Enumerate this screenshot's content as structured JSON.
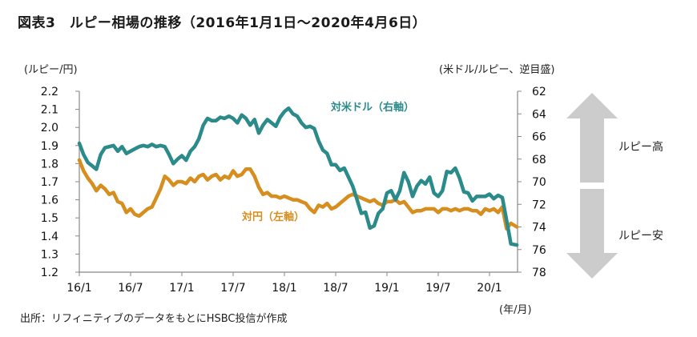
{
  "header": {
    "title": "図表3　ルピー相場の推移（2016年1月1日～2020年4月6日）"
  },
  "footer": {
    "source": "出所：リフィニティブのデータをもとにHSBC投信が作成"
  },
  "chart_data": {
    "type": "line",
    "title": "図表3　ルピー相場の推移（2016年1月1日～2020年4月6日）",
    "xlabel": "(年/月)",
    "ylabel_left": "(ルピー/円)",
    "ylabel_right": "(米ドル/ルピー、逆目盛)",
    "x_ticks": [
      "16/1",
      "16/7",
      "17/1",
      "17/7",
      "18/1",
      "18/7",
      "19/1",
      "19/7",
      "20/1"
    ],
    "x_range_months": [
      0,
      51.2
    ],
    "y_left": {
      "ticks": [
        "2.2",
        "2.1",
        "2.0",
        "1.9",
        "1.8",
        "1.7",
        "1.6",
        "1.5",
        "1.4",
        "1.3",
        "1.2"
      ],
      "range": [
        1.2,
        2.2
      ]
    },
    "y_right": {
      "ticks": [
        "62",
        "64",
        "66",
        "68",
        "70",
        "72",
        "74",
        "76",
        "78"
      ],
      "range": [
        62,
        78
      ],
      "inverted": true
    },
    "grid": false,
    "series": [
      {
        "name": "対米ドル（右軸）",
        "axis": "right",
        "color": "#2b8a8a",
        "x": [
          0,
          0.5,
          1,
          1.5,
          2,
          2.5,
          3,
          3.5,
          4,
          4.5,
          5,
          5.5,
          6,
          6.5,
          7,
          7.5,
          8,
          8.5,
          9,
          9.5,
          10,
          10.5,
          11,
          11.5,
          12,
          12.5,
          13,
          13.5,
          14,
          14.5,
          15,
          15.5,
          16,
          16.5,
          17,
          17.5,
          18,
          18.5,
          19,
          19.5,
          20,
          20.5,
          21,
          21.5,
          22,
          22.5,
          23,
          23.5,
          24,
          24.5,
          25,
          25.5,
          26,
          26.5,
          27,
          27.5,
          28,
          28.5,
          29,
          29.5,
          30,
          30.5,
          31,
          31.5,
          32,
          32.5,
          33,
          33.5,
          34,
          34.5,
          35,
          35.5,
          36,
          36.5,
          37,
          37.5,
          38,
          38.5,
          39,
          39.5,
          40,
          40.5,
          41,
          41.5,
          42,
          42.5,
          43,
          43.5,
          44,
          44.5,
          45,
          45.5,
          46,
          46.5,
          47,
          47.5,
          48,
          48.5,
          49,
          49.5,
          50,
          50.5,
          51.2
        ],
        "values": [
          66.6,
          67.6,
          68.3,
          68.6,
          68.9,
          67.6,
          67.0,
          66.9,
          66.8,
          67.3,
          66.9,
          67.5,
          67.3,
          67.1,
          66.9,
          66.8,
          66.9,
          66.7,
          66.9,
          66.8,
          66.9,
          67.6,
          68.4,
          68.0,
          67.7,
          68.1,
          67.3,
          66.9,
          66.2,
          65.0,
          64.4,
          64.6,
          64.6,
          64.3,
          64.4,
          64.2,
          64.4,
          64.8,
          64.1,
          64.4,
          65.0,
          64.5,
          65.7,
          65.0,
          64.5,
          64.8,
          65.1,
          64.3,
          63.8,
          63.5,
          64.0,
          64.2,
          64.8,
          65.2,
          65.1,
          65.3,
          66.4,
          67.2,
          67.5,
          68.5,
          68.5,
          69.0,
          68.8,
          69.6,
          70.4,
          71.6,
          72.8,
          72.7,
          74.1,
          73.9,
          72.8,
          72.4,
          71.0,
          70.8,
          71.6,
          70.8,
          69.2,
          70.0,
          71.3,
          70.4,
          69.9,
          70.2,
          69.6,
          71.0,
          71.3,
          70.8,
          69.1,
          69.2,
          68.8,
          69.7,
          70.9,
          71.0,
          71.7,
          71.3,
          71.3,
          71.3,
          71.1,
          71.5,
          71.2,
          71.4,
          73.4,
          75.5,
          75.6
        ]
      },
      {
        "name": "対円（左軸）",
        "axis": "left",
        "color": "#d68e1e",
        "x": [
          0,
          0.5,
          1,
          1.5,
          2,
          2.5,
          3,
          3.5,
          4,
          4.5,
          5,
          5.5,
          6,
          6.5,
          7,
          7.5,
          8,
          8.5,
          9,
          9.5,
          10,
          10.5,
          11,
          11.5,
          12,
          12.5,
          13,
          13.5,
          14,
          14.5,
          15,
          15.5,
          16,
          16.5,
          17,
          17.5,
          18,
          18.5,
          19,
          19.5,
          20,
          20.5,
          21,
          21.5,
          22,
          22.5,
          23,
          23.5,
          24,
          24.5,
          25,
          25.5,
          26,
          26.5,
          27,
          27.5,
          28,
          28.5,
          29,
          29.5,
          30,
          30.5,
          31,
          31.5,
          32,
          32.5,
          33,
          33.5,
          34,
          34.5,
          35,
          35.5,
          36,
          36.5,
          37,
          37.5,
          38,
          38.5,
          39,
          39.5,
          40,
          40.5,
          41,
          41.5,
          42,
          42.5,
          43,
          43.5,
          44,
          44.5,
          45,
          45.5,
          46,
          46.5,
          47,
          47.5,
          48,
          48.5,
          49,
          49.5,
          50,
          50.5,
          51.2
        ],
        "values": [
          1.82,
          1.76,
          1.72,
          1.69,
          1.65,
          1.68,
          1.66,
          1.63,
          1.64,
          1.59,
          1.58,
          1.53,
          1.55,
          1.52,
          1.51,
          1.53,
          1.55,
          1.56,
          1.61,
          1.66,
          1.73,
          1.71,
          1.68,
          1.7,
          1.7,
          1.69,
          1.72,
          1.7,
          1.73,
          1.74,
          1.71,
          1.73,
          1.74,
          1.71,
          1.73,
          1.72,
          1.76,
          1.73,
          1.74,
          1.77,
          1.77,
          1.73,
          1.67,
          1.63,
          1.64,
          1.62,
          1.62,
          1.61,
          1.62,
          1.61,
          1.6,
          1.6,
          1.59,
          1.58,
          1.55,
          1.53,
          1.57,
          1.56,
          1.58,
          1.55,
          1.56,
          1.58,
          1.6,
          1.62,
          1.63,
          1.62,
          1.61,
          1.6,
          1.59,
          1.6,
          1.58,
          1.57,
          1.59,
          1.59,
          1.6,
          1.58,
          1.59,
          1.56,
          1.53,
          1.54,
          1.54,
          1.55,
          1.55,
          1.55,
          1.53,
          1.55,
          1.55,
          1.54,
          1.55,
          1.54,
          1.55,
          1.55,
          1.54,
          1.54,
          1.52,
          1.55,
          1.54,
          1.55,
          1.53,
          1.56,
          1.44,
          1.47,
          1.45
        ]
      }
    ],
    "annotations": {
      "series_label_usd": "対米ドル（右軸）",
      "series_label_jpy": "対円（左軸）",
      "arrow_up_label": "ルピー高",
      "arrow_down_label": "ルピー安",
      "arrow_color": "#cccccc"
    }
  }
}
